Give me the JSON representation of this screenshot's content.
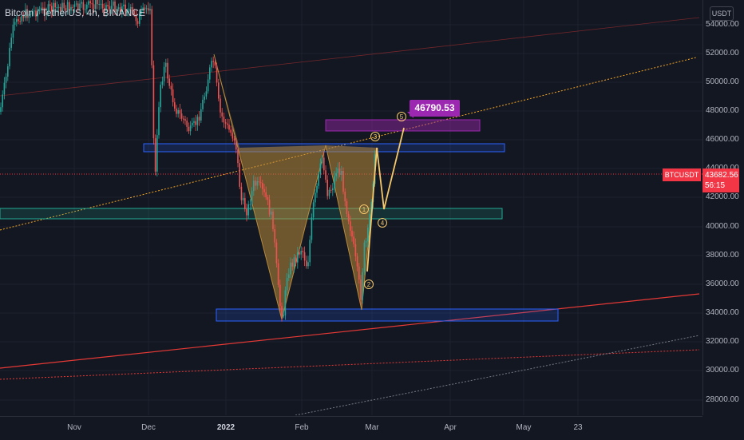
{
  "title": "Bitcoin / TetherUS, 4h, BINANCE",
  "unit": "USDT",
  "y_axis": [
    "54000.00",
    "52000.00",
    "50000.00",
    "48000.00",
    "46000.00",
    "44000.00",
    "42000.00",
    "40000.00",
    "38000.00",
    "36000.00",
    "34000.00",
    "32000.00",
    "30000.00",
    "28000.00"
  ],
  "x_axis": [
    "Nov",
    "Dec",
    "2022",
    "Feb",
    "Mar",
    "Apr",
    "May",
    "23"
  ],
  "current_price": {
    "symbol": "BTCUSDT",
    "price": "43682.56",
    "countdown": "56:15"
  },
  "target_label": "46790.53",
  "wave_labels": [
    "1",
    "2",
    "3",
    "4",
    "5"
  ],
  "colors": {
    "background": "#131722",
    "price_line": "#f23645",
    "harmonic_fill": "#b98b3a",
    "zone_blue": "#2962ff",
    "zone_teal": "#22ab94",
    "zone_purple": "#9c27b0",
    "up_candle": "#26a69a",
    "down_candle": "#ef5350",
    "trendline_orange": "#f5a623",
    "trendline_red": "#e53935"
  }
}
